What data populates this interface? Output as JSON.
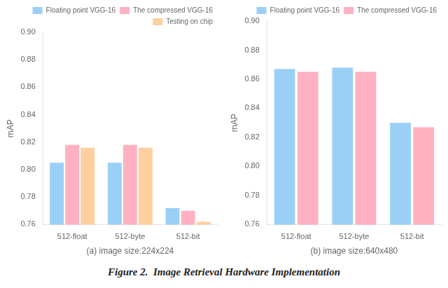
{
  "caption": "Figure 2.  Image Retrieval Hardware Implementation",
  "chart_data": [
    {
      "type": "bar",
      "categories": [
        "512-float",
        "512-byte",
        "512-bit"
      ],
      "series": [
        {
          "name": "Floating point VGG-16",
          "values": [
            0.805,
            0.805,
            0.772
          ]
        },
        {
          "name": "The compressed VGG-16",
          "values": [
            0.818,
            0.818,
            0.77
          ]
        },
        {
          "name": "Testing on chip",
          "values": [
            0.816,
            0.816,
            0.762
          ]
        }
      ],
      "xlabel": "(a) image size:224x224",
      "ylabel": "mAP",
      "ylim": [
        0.76,
        0.9
      ],
      "yticks": [
        0.76,
        0.78,
        {
          "value": 0.8,
          "label": "0.80"
        },
        0.82,
        0.84,
        0.86,
        0.88,
        {
          "value": 0.9,
          "label": "0.90"
        }
      ],
      "grid": false,
      "legend": "upper right"
    },
    {
      "type": "bar",
      "categories": [
        "512-float",
        "512-byte",
        "512-bit"
      ],
      "series": [
        {
          "name": "Floating point VGG-16",
          "values": [
            0.867,
            0.868,
            0.83
          ]
        },
        {
          "name": "The compressed VGG-16",
          "values": [
            0.865,
            0.865,
            0.827
          ]
        }
      ],
      "xlabel": "(b) image size:640x480",
      "ylabel": "mAP",
      "ylim": [
        0.76,
        0.9
      ],
      "yticks": [
        0.76,
        0.78,
        {
          "value": 0.8,
          "label": "0.80"
        },
        0.82,
        0.84,
        0.86,
        0.88,
        {
          "value": 0.9,
          "label": "0.90"
        }
      ],
      "grid": false,
      "legend": "upper right"
    }
  ]
}
